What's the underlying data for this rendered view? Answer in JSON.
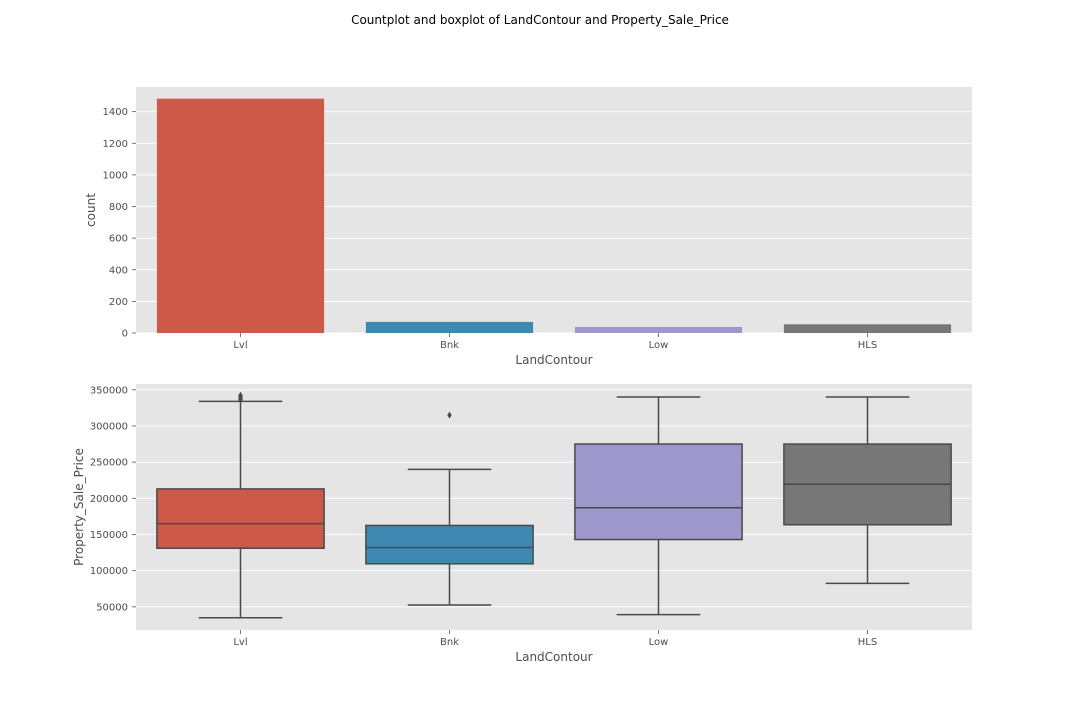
{
  "title": "Countplot and boxplot of LandContour and Property_Sale_Price",
  "colors": {
    "panel_bg": "#e5e5e5",
    "grid": "#ffffff",
    "box_edge": "#4a4a4a",
    "Lvl": "#cd5a48",
    "Bnk": "#3f88b2",
    "Low": "#9d97cb",
    "HLS": "#777777"
  },
  "chart_data": [
    {
      "type": "bar",
      "categories": [
        "Lvl",
        "Bnk",
        "Low",
        "HLS"
      ],
      "values": [
        1482,
        70,
        38,
        55
      ],
      "xlabel": "LandContour",
      "ylabel": "count",
      "ylim": [
        0,
        1556
      ],
      "yticks": [
        0,
        200,
        400,
        600,
        800,
        1000,
        1200,
        1400
      ],
      "grid": true
    },
    {
      "type": "box",
      "categories": [
        "Lvl",
        "Bnk",
        "Low",
        "HLS"
      ],
      "boxes": [
        {
          "whislo": 34900,
          "q1": 131000,
          "med": 165000,
          "q3": 213000,
          "whishi": 334000,
          "fliers": [
            336000,
            337500,
            338500,
            340000,
            341500,
            342500
          ]
        },
        {
          "whislo": 52500,
          "q1": 109500,
          "med": 132000,
          "q3": 162500,
          "whishi": 240000,
          "fliers": [
            315000
          ]
        },
        {
          "whislo": 39300,
          "q1": 143000,
          "med": 187000,
          "q3": 275000,
          "whishi": 340000,
          "fliers": []
        },
        {
          "whislo": 82500,
          "q1": 163500,
          "med": 219500,
          "q3": 275000,
          "whishi": 340000,
          "fliers": []
        }
      ],
      "xlabel": "LandContour",
      "ylabel": "Property_Sale_Price",
      "ylim": [
        18000,
        358000
      ],
      "yticks": [
        50000,
        100000,
        150000,
        200000,
        250000,
        300000,
        350000
      ],
      "grid": true
    }
  ]
}
